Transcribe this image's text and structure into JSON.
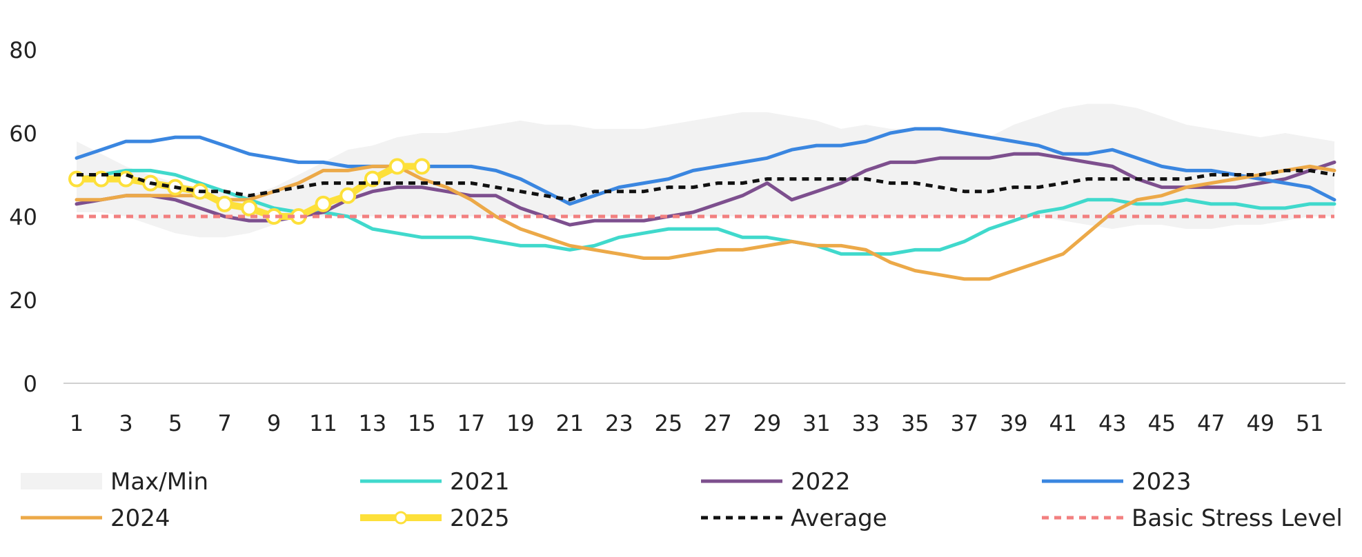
{
  "chart_data": {
    "type": "line",
    "title": "",
    "xlabel": "",
    "ylabel": "",
    "ylim": [
      0,
      80
    ],
    "yticks": [
      0,
      20,
      40,
      60,
      80
    ],
    "xlim": [
      1,
      52
    ],
    "xtick_labels": [
      "1",
      "3",
      "5",
      "7",
      "9",
      "11",
      "13",
      "15",
      "17",
      "19",
      "21",
      "23",
      "25",
      "27",
      "29",
      "31",
      "33",
      "35",
      "37",
      "39",
      "41",
      "43",
      "45",
      "47",
      "49",
      "51"
    ],
    "grid": false,
    "legend_position": "bottom",
    "band": {
      "name": "Max/Min",
      "color": "#f2f2f2",
      "max": [
        58,
        55,
        52,
        50,
        48,
        47,
        46,
        45,
        47,
        50,
        53,
        56,
        57,
        59,
        60,
        60,
        61,
        62,
        63,
        62,
        62,
        61,
        61,
        61,
        62,
        63,
        64,
        65,
        65,
        64,
        63,
        61,
        62,
        61,
        61,
        61,
        60,
        59,
        62,
        64,
        66,
        67,
        67,
        66,
        64,
        62,
        61,
        60,
        59,
        60,
        59,
        58
      ],
      "min": [
        41,
        41,
        40,
        38,
        36,
        35,
        35,
        36,
        38,
        40,
        40,
        40,
        40,
        40,
        40,
        40,
        40,
        40,
        40,
        40,
        40,
        40,
        40,
        40,
        40,
        40,
        40,
        40,
        40,
        40,
        40,
        40,
        40,
        40,
        40,
        40,
        40,
        40,
        40,
        40,
        39,
        38,
        37,
        38,
        38,
        37,
        37,
        38,
        38,
        39,
        40,
        40
      ]
    },
    "series": [
      {
        "name": "2021",
        "color": "#40d9cc",
        "width": 5,
        "dash": "",
        "marker": false,
        "values": [
          49,
          50,
          51,
          51,
          50,
          48,
          46,
          44,
          42,
          41,
          41,
          40,
          37,
          36,
          35,
          35,
          35,
          34,
          33,
          33,
          32,
          33,
          35,
          36,
          37,
          37,
          37,
          35,
          35,
          34,
          33,
          31,
          31,
          31,
          32,
          32,
          34,
          37,
          39,
          41,
          42,
          44,
          44,
          43,
          43,
          44,
          43,
          43,
          42,
          42,
          43,
          43
        ]
      },
      {
        "name": "2022",
        "color": "#7d4f8e",
        "width": 5,
        "dash": "",
        "marker": false,
        "values": [
          43,
          44,
          45,
          45,
          44,
          42,
          40,
          39,
          39,
          40,
          41,
          44,
          46,
          47,
          47,
          46,
          45,
          45,
          42,
          40,
          38,
          39,
          39,
          39,
          40,
          41,
          43,
          45,
          48,
          44,
          46,
          48,
          51,
          53,
          53,
          54,
          54,
          54,
          55,
          55,
          54,
          53,
          52,
          49,
          47,
          47,
          47,
          47,
          48,
          49,
          51,
          53
        ]
      },
      {
        "name": "2023",
        "color": "#3a86e0",
        "width": 5,
        "dash": "",
        "marker": false,
        "values": [
          54,
          56,
          58,
          58,
          59,
          59,
          57,
          55,
          54,
          53,
          53,
          52,
          52,
          52,
          52,
          52,
          52,
          51,
          49,
          46,
          43,
          45,
          47,
          48,
          49,
          51,
          52,
          53,
          54,
          56,
          57,
          57,
          58,
          60,
          61,
          61,
          60,
          59,
          58,
          57,
          55,
          55,
          56,
          54,
          52,
          51,
          51,
          50,
          49,
          48,
          47,
          44
        ]
      },
      {
        "name": "2024",
        "color": "#eca948",
        "width": 5,
        "dash": "",
        "marker": false,
        "values": [
          44,
          44,
          45,
          45,
          45,
          45,
          44,
          44,
          46,
          48,
          51,
          51,
          52,
          52,
          49,
          47,
          44,
          40,
          37,
          35,
          33,
          32,
          31,
          30,
          30,
          31,
          32,
          32,
          33,
          34,
          33,
          33,
          32,
          29,
          27,
          26,
          25,
          25,
          27,
          29,
          31,
          36,
          41,
          44,
          45,
          47,
          48,
          49,
          50,
          51,
          52,
          51
        ]
      },
      {
        "name": "2025",
        "color": "#fde03a",
        "width": 10,
        "dash": "",
        "marker": true,
        "values": [
          49,
          49,
          49,
          48,
          47,
          46,
          43,
          42,
          40,
          40,
          43,
          45,
          49,
          52,
          52
        ]
      },
      {
        "name": "Average",
        "color": "#111111",
        "width": 5,
        "dash": "10,8",
        "marker": false,
        "values": [
          50,
          50,
          50,
          48,
          47,
          46,
          46,
          45,
          46,
          47,
          48,
          48,
          48,
          48,
          48,
          48,
          48,
          47,
          46,
          45,
          44,
          46,
          46,
          46,
          47,
          47,
          48,
          48,
          49,
          49,
          49,
          49,
          49,
          48,
          48,
          47,
          46,
          46,
          47,
          47,
          48,
          49,
          49,
          49,
          49,
          49,
          50,
          50,
          50,
          51,
          51,
          50
        ]
      },
      {
        "name": "Basic Stress Level",
        "color": "#f28080",
        "width": 5,
        "dash": "10,8",
        "marker": false,
        "values": [
          40,
          40,
          40,
          40,
          40,
          40,
          40,
          40,
          40,
          40,
          40,
          40,
          40,
          40,
          40,
          40,
          40,
          40,
          40,
          40,
          40,
          40,
          40,
          40,
          40,
          40,
          40,
          40,
          40,
          40,
          40,
          40,
          40,
          40,
          40,
          40,
          40,
          40,
          40,
          40,
          40,
          40,
          40,
          40,
          40,
          40,
          40,
          40,
          40,
          40,
          40,
          40
        ]
      }
    ]
  }
}
